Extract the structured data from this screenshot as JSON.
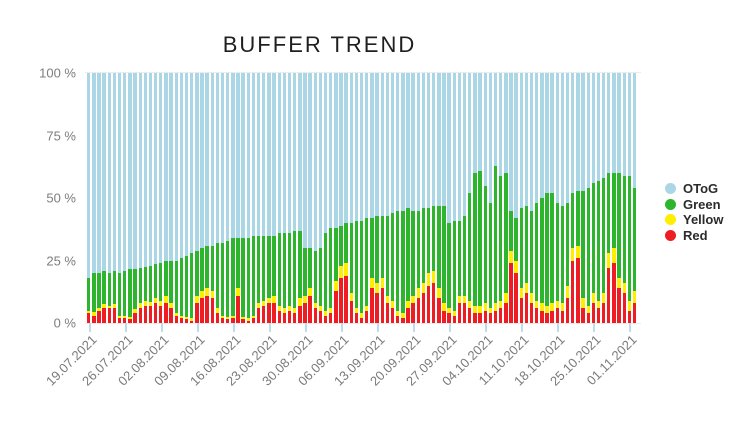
{
  "title": "BUFFER TREND",
  "colors": {
    "otog": "#aad6e6",
    "green": "#2db52d",
    "yellow": "#ffee00",
    "red": "#ee1c23",
    "gridline": "#ececec",
    "x_tick": "#bcdde9",
    "axis_text": "#7a7a7a",
    "title_text": "#1f1f1f"
  },
  "legend": [
    {
      "label": "OToG",
      "color": "#aad6e6"
    },
    {
      "label": "Green",
      "color": "#2db52d"
    },
    {
      "label": "Yellow",
      "color": "#ffee00"
    },
    {
      "label": "Red",
      "color": "#ee1c23"
    }
  ],
  "y_axis": {
    "ticks": [
      "100 %",
      "75 %",
      "50 %",
      "25 %",
      "0 %"
    ],
    "min": 0,
    "max": 100
  },
  "chart_data": {
    "type": "bar",
    "stacked": true,
    "title": "BUFFER TREND",
    "ylim": [
      0,
      100
    ],
    "grid": "top-and-bottom-only",
    "legend_position": "right",
    "bar_unit": "percent-of-total",
    "series_order_bottom_to_top": [
      "Red",
      "Yellow",
      "Green",
      "OToG"
    ],
    "otog_rule": "OToG = 100 - (Red + Yellow + Green)",
    "x_labels": [
      "19.07.2021",
      "26.07.2021",
      "02.08.2021",
      "09.08.2021",
      "16.08.2021",
      "23.08.2021",
      "30.08.2021",
      "06.09.2021",
      "13.09.2021",
      "20.09.2021",
      "27.09.2021",
      "04.10.2021",
      "11.10.2021",
      "18.10.2021",
      "25.10.2021",
      "01.11.2021"
    ],
    "label_every_n_bars": 7,
    "bars_red_yellow_green": [
      [
        4,
        1,
        13
      ],
      [
        3,
        1.5,
        15.5
      ],
      [
        5,
        1,
        14
      ],
      [
        6,
        1.5,
        13.5
      ],
      [
        6,
        1,
        13
      ],
      [
        6,
        1.5,
        13.5
      ],
      [
        2,
        1,
        17
      ],
      [
        2,
        1,
        18
      ],
      [
        1.5,
        1,
        19
      ],
      [
        4,
        1.5,
        16
      ],
      [
        6,
        2,
        14
      ],
      [
        7,
        2,
        13.5
      ],
      [
        7,
        1.5,
        14.5
      ],
      [
        8,
        2,
        13.5
      ],
      [
        7,
        2,
        15
      ],
      [
        8,
        3,
        14
      ],
      [
        6,
        2,
        17
      ],
      [
        3,
        1,
        21
      ],
      [
        2,
        1,
        23
      ],
      [
        1.5,
        1,
        24.5
      ],
      [
        1,
        1,
        26
      ],
      [
        8,
        3,
        18
      ],
      [
        10,
        3,
        17
      ],
      [
        11,
        3,
        17
      ],
      [
        10,
        3,
        18
      ],
      [
        4,
        2,
        26
      ],
      [
        2,
        1,
        29
      ],
      [
        1.5,
        1,
        30.5
      ],
      [
        2,
        1,
        31
      ],
      [
        11,
        3,
        20
      ],
      [
        1.5,
        1,
        31.5
      ],
      [
        1,
        1,
        32
      ],
      [
        2,
        1,
        32
      ],
      [
        6,
        2,
        27
      ],
      [
        7,
        2,
        26
      ],
      [
        8,
        2,
        25
      ],
      [
        8,
        3,
        24
      ],
      [
        5,
        2,
        29
      ],
      [
        4,
        2,
        30
      ],
      [
        5,
        2,
        29
      ],
      [
        4,
        2,
        31
      ],
      [
        7,
        3,
        27
      ],
      [
        8,
        3,
        19
      ],
      [
        11,
        3,
        16
      ],
      [
        6,
        2,
        21
      ],
      [
        5,
        2,
        23
      ],
      [
        3,
        2,
        31
      ],
      [
        4,
        2,
        32
      ],
      [
        13,
        4,
        21
      ],
      [
        18,
        5,
        16
      ],
      [
        19,
        5,
        16
      ],
      [
        9,
        3,
        28
      ],
      [
        4,
        2,
        35
      ],
      [
        2,
        2,
        37
      ],
      [
        5,
        2,
        35
      ],
      [
        14,
        4,
        24
      ],
      [
        12,
        4,
        27
      ],
      [
        14,
        4,
        25
      ],
      [
        8,
        3,
        32
      ],
      [
        6,
        3,
        35
      ],
      [
        3,
        2,
        40
      ],
      [
        2,
        2,
        41
      ],
      [
        6,
        3,
        37
      ],
      [
        8,
        3,
        34
      ],
      [
        10,
        4,
        31
      ],
      [
        12,
        4,
        30
      ],
      [
        15,
        5,
        26
      ],
      [
        16,
        5,
        26
      ],
      [
        10,
        4,
        33
      ],
      [
        5,
        3,
        39
      ],
      [
        4,
        2,
        34
      ],
      [
        3,
        2,
        36
      ],
      [
        8,
        3,
        30
      ],
      [
        8,
        3,
        32
      ],
      [
        6,
        3,
        43
      ],
      [
        4,
        3,
        53
      ],
      [
        4,
        3,
        54
      ],
      [
        5,
        3,
        47
      ],
      [
        4,
        2,
        42
      ],
      [
        5,
        3,
        55
      ],
      [
        6,
        3,
        50
      ],
      [
        8,
        4,
        48
      ],
      [
        24,
        5,
        16
      ],
      [
        20,
        5,
        17
      ],
      [
        10,
        4,
        32
      ],
      [
        12,
        4,
        31
      ],
      [
        8,
        4,
        33
      ],
      [
        6,
        3,
        39
      ],
      [
        5,
        3,
        42
      ],
      [
        4,
        3,
        45
      ],
      [
        5,
        3,
        44
      ],
      [
        6,
        3,
        39
      ],
      [
        5,
        3,
        39
      ],
      [
        10,
        5,
        33
      ],
      [
        25,
        5,
        22
      ],
      [
        26,
        5,
        22
      ],
      [
        6,
        4,
        43
      ],
      [
        4,
        3,
        47
      ],
      [
        8,
        4,
        44
      ],
      [
        6,
        3,
        48
      ],
      [
        8,
        4,
        46
      ],
      [
        22,
        6,
        32
      ],
      [
        24,
        6,
        30
      ],
      [
        14,
        4,
        42
      ],
      [
        12,
        4,
        43
      ],
      [
        5,
        4,
        50
      ],
      [
        8,
        5,
        41
      ]
    ]
  }
}
